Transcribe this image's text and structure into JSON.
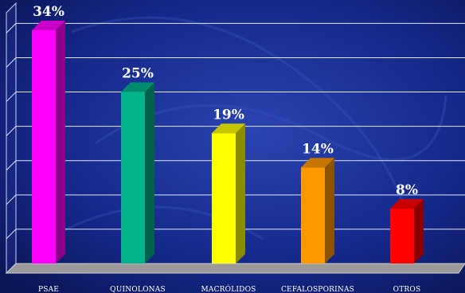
{
  "chart_data": {
    "type": "bar",
    "categories": [
      "PSAE",
      "QUINOLONAS",
      "MACRÓLIDOS",
      "CEFALOSPORINAS",
      "OTROS"
    ],
    "values": [
      34,
      25,
      19,
      14,
      8
    ],
    "value_labels": [
      "34%",
      "25%",
      "19%",
      "14%",
      "8%"
    ],
    "ylim": [
      0,
      35
    ],
    "grid": true,
    "legend": "none"
  },
  "colors": {
    "background": "#0f1f6e",
    "bars": [
      "#ff00ff",
      "#00b38a",
      "#ffff00",
      "#ff9900",
      "#ff0000"
    ]
  }
}
